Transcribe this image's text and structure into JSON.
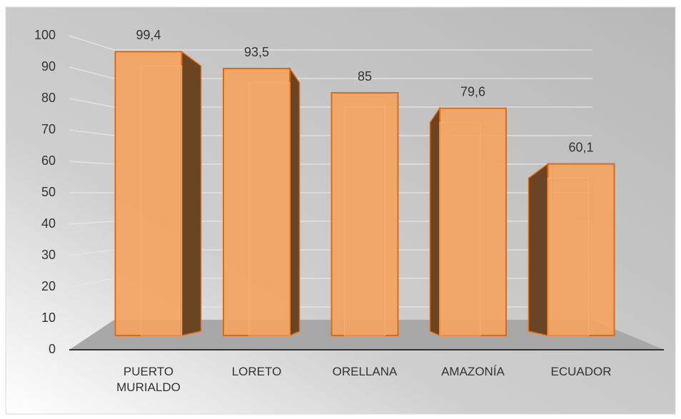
{
  "chart_data": {
    "type": "bar",
    "categories": [
      "PUERTO MURIALDO",
      "LORETO",
      "ORELLANA",
      "AMAZONÍA",
      "ECUADOR"
    ],
    "values": [
      99.4,
      93.5,
      85,
      79.6,
      60.1
    ],
    "value_labels": [
      "99,4",
      "93,5",
      "85",
      "79,6",
      "60,1"
    ],
    "color": "#f4a460",
    "ylim": [
      0,
      100
    ],
    "yticks": [
      0,
      10,
      20,
      30,
      40,
      50,
      60,
      70,
      80,
      90,
      100
    ],
    "grid": true
  }
}
